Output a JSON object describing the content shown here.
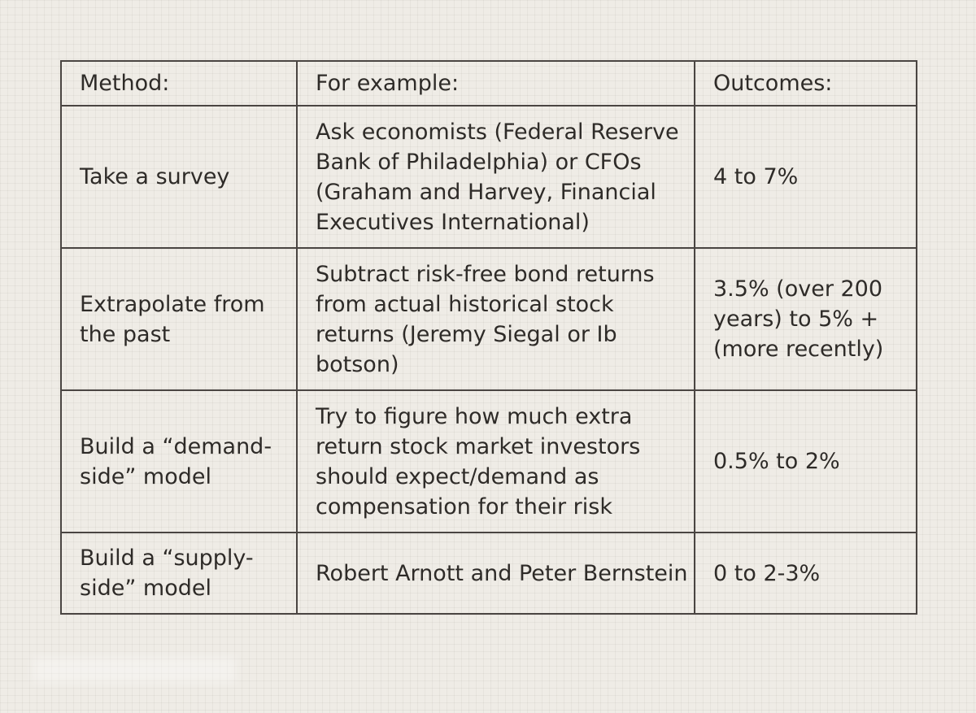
{
  "table": {
    "headers": {
      "method": "Method:",
      "example": "For example:",
      "outcome": "Outcomes:"
    },
    "rows": [
      {
        "method": "Take a survey",
        "example": "Ask economists (Federal Reserve Bank of Philadelphia) or CFOs (Graham and Harvey, Financial Executives International)",
        "outcome": "4 to 7%"
      },
      {
        "method": "Extrapolate from the past",
        "example": "Subtract risk-free bond returns from actual historical stock returns (Jeremy Siegal or Ib botson)",
        "outcome": "3.5% (over 200 years) to 5% + (more recently)"
      },
      {
        "method": "Build a “demand-side” model",
        "example": "Try to figure how much extra return stock market investors should expect/demand as compensation for their risk",
        "outcome": "0.5% to 2%"
      },
      {
        "method": "Build a “supply-side” model",
        "example": "Robert Arnott and Peter Bernstein",
        "outcome": "0 to 2-3%"
      }
    ]
  }
}
